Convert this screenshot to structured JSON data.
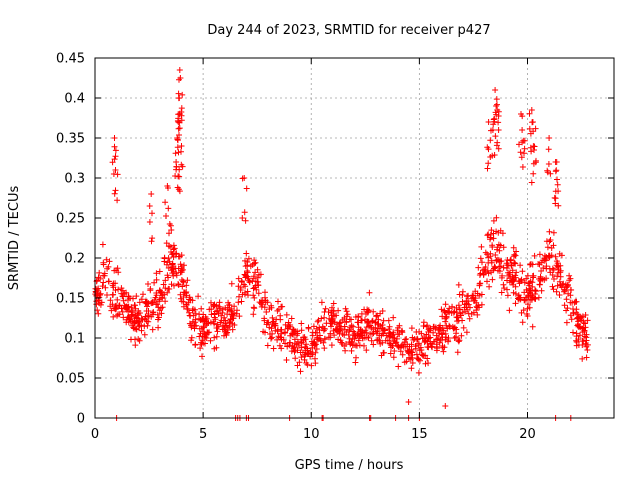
{
  "chart_data": {
    "type": "scatter",
    "title": "Day 244 of 2023, SRMTID for receiver p427",
    "xlabel": "GPS time / hours",
    "ylabel": "SRMTID / TECUs",
    "xlim": [
      0,
      24
    ],
    "ylim": [
      0,
      0.45
    ],
    "xticks": [
      0,
      5,
      10,
      15,
      20
    ],
    "yticks": [
      0,
      0.05,
      0.1,
      0.15,
      0.2,
      0.25,
      0.3,
      0.35,
      0.4,
      0.45
    ],
    "grid": true,
    "marker": "+",
    "color": "#ff0000",
    "series": [
      {
        "name": "SRMTID",
        "trend": [
          [
            0.0,
            0.16
          ],
          [
            0.5,
            0.17
          ],
          [
            1.0,
            0.15
          ],
          [
            1.5,
            0.14
          ],
          [
            2.0,
            0.12
          ],
          [
            2.5,
            0.13
          ],
          [
            3.0,
            0.15
          ],
          [
            3.5,
            0.2
          ],
          [
            4.0,
            0.18
          ],
          [
            4.5,
            0.12
          ],
          [
            5.0,
            0.11
          ],
          [
            5.5,
            0.13
          ],
          [
            6.0,
            0.12
          ],
          [
            6.5,
            0.14
          ],
          [
            7.0,
            0.17
          ],
          [
            7.5,
            0.17
          ],
          [
            8.0,
            0.12
          ],
          [
            8.5,
            0.11
          ],
          [
            9.0,
            0.1
          ],
          [
            9.5,
            0.09
          ],
          [
            10.0,
            0.09
          ],
          [
            10.5,
            0.11
          ],
          [
            11.0,
            0.12
          ],
          [
            11.5,
            0.11
          ],
          [
            12.0,
            0.1
          ],
          [
            12.5,
            0.12
          ],
          [
            13.0,
            0.11
          ],
          [
            13.5,
            0.1
          ],
          [
            14.0,
            0.1
          ],
          [
            14.5,
            0.08
          ],
          [
            15.0,
            0.09
          ],
          [
            15.5,
            0.1
          ],
          [
            16.0,
            0.11
          ],
          [
            16.5,
            0.12
          ],
          [
            17.0,
            0.13
          ],
          [
            17.5,
            0.14
          ],
          [
            18.0,
            0.19
          ],
          [
            18.5,
            0.21
          ],
          [
            19.0,
            0.19
          ],
          [
            19.5,
            0.17
          ],
          [
            20.0,
            0.15
          ],
          [
            20.5,
            0.17
          ],
          [
            21.0,
            0.2
          ],
          [
            21.5,
            0.17
          ],
          [
            22.0,
            0.14
          ],
          [
            22.5,
            0.11
          ],
          [
            22.8,
            0.1
          ]
        ],
        "spread": 0.045,
        "n_points": 1500,
        "peaks": [
          {
            "x": 0.9,
            "y": 0.35
          },
          {
            "x": 0.95,
            "y": 0.31
          },
          {
            "x": 2.6,
            "y": 0.28
          },
          {
            "x": 3.35,
            "y": 0.29
          },
          {
            "x": 3.75,
            "y": 0.32
          },
          {
            "x": 3.8,
            "y": 0.35
          },
          {
            "x": 3.85,
            "y": 0.37
          },
          {
            "x": 3.9,
            "y": 0.4
          },
          {
            "x": 3.92,
            "y": 0.435
          },
          {
            "x": 3.95,
            "y": 0.425
          },
          {
            "x": 4.0,
            "y": 0.34
          },
          {
            "x": 6.9,
            "y": 0.3
          },
          {
            "x": 18.2,
            "y": 0.37
          },
          {
            "x": 18.4,
            "y": 0.36
          },
          {
            "x": 18.5,
            "y": 0.41
          },
          {
            "x": 18.55,
            "y": 0.39
          },
          {
            "x": 18.6,
            "y": 0.385
          },
          {
            "x": 19.7,
            "y": 0.38
          },
          {
            "x": 19.75,
            "y": 0.36
          },
          {
            "x": 20.2,
            "y": 0.385
          },
          {
            "x": 20.25,
            "y": 0.37
          },
          {
            "x": 20.3,
            "y": 0.335
          },
          {
            "x": 21.0,
            "y": 0.35
          },
          {
            "x": 21.3,
            "y": 0.32
          },
          {
            "x": 21.35,
            "y": 0.32
          },
          {
            "x": 14.5,
            "y": 0.02
          },
          {
            "x": 16.2,
            "y": 0.015
          }
        ],
        "zero_points": [
          1.0,
          6.5,
          6.6,
          6.7,
          7.0,
          7.1,
          9.0,
          10.5,
          10.55,
          12.7,
          12.75,
          13.9,
          14.5,
          15.0,
          21.3,
          22.0
        ]
      }
    ]
  }
}
